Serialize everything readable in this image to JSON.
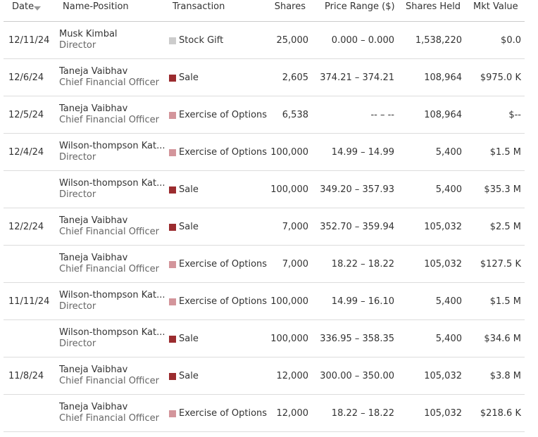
{
  "header": {
    "date": "Date",
    "name_position": "Name-Position",
    "transaction": "Transaction",
    "shares": "Shares",
    "price_range": "Price Range ($)",
    "shares_held": "Shares Held",
    "mkt_value": "Mkt Value"
  },
  "table": {
    "rows": [
      {
        "date": "12/11/24",
        "name": "Musk Kimbal",
        "position": "Director",
        "transaction": "Stock Gift",
        "swatch": "#cccccc",
        "shares": "25,000",
        "price_range": "0.000 – 0.000",
        "shares_held": "1,538,220",
        "mkt_value": "$0.0"
      },
      {
        "date": "12/6/24",
        "name": "Taneja Vaibhav",
        "position": "Chief Financial Officer",
        "transaction": "Sale",
        "swatch": "#9b2c2f",
        "shares": "2,605",
        "price_range": "374.21 – 374.21",
        "shares_held": "108,964",
        "mkt_value": "$975.0 K"
      },
      {
        "date": "12/5/24",
        "name": "Taneja Vaibhav",
        "position": "Chief Financial Officer",
        "transaction": "Exercise of Options",
        "swatch": "#d3959b",
        "shares": "6,538",
        "price_range": "-- – --",
        "shares_held": "108,964",
        "mkt_value": "$--"
      },
      {
        "date": "12/4/24",
        "name": "Wilson-thompson Kat...",
        "position": "Director",
        "transaction": "Exercise of Options",
        "swatch": "#d3959b",
        "shares": "100,000",
        "price_range": "14.99 – 14.99",
        "shares_held": "5,400",
        "mkt_value": "$1.5 M"
      },
      {
        "date": null,
        "name": "Wilson-thompson Kat...",
        "position": "Director",
        "transaction": "Sale",
        "swatch": "#9b2c2f",
        "shares": "100,000",
        "price_range": "349.20 – 357.93",
        "shares_held": "5,400",
        "mkt_value": "$35.3 M"
      },
      {
        "date": "12/2/24",
        "name": "Taneja Vaibhav",
        "position": "Chief Financial Officer",
        "transaction": "Sale",
        "swatch": "#9b2c2f",
        "shares": "7,000",
        "price_range": "352.70 – 359.94",
        "shares_held": "105,032",
        "mkt_value": "$2.5 M"
      },
      {
        "date": null,
        "name": "Taneja Vaibhav",
        "position": "Chief Financial Officer",
        "transaction": "Exercise of Options",
        "swatch": "#d3959b",
        "shares": "7,000",
        "price_range": "18.22 – 18.22",
        "shares_held": "105,032",
        "mkt_value": "$127.5 K"
      },
      {
        "date": "11/11/24",
        "name": "Wilson-thompson Kat...",
        "position": "Director",
        "transaction": "Exercise of Options",
        "swatch": "#d3959b",
        "shares": "100,000",
        "price_range": "14.99 – 16.10",
        "shares_held": "5,400",
        "mkt_value": "$1.5 M"
      },
      {
        "date": null,
        "name": "Wilson-thompson Kat...",
        "position": "Director",
        "transaction": "Sale",
        "swatch": "#9b2c2f",
        "shares": "100,000",
        "price_range": "336.95 – 358.35",
        "shares_held": "5,400",
        "mkt_value": "$34.6 M"
      },
      {
        "date": "11/8/24",
        "name": "Taneja Vaibhav",
        "position": "Chief Financial Officer",
        "transaction": "Sale",
        "swatch": "#9b2c2f",
        "shares": "12,000",
        "price_range": "300.00 – 350.00",
        "shares_held": "105,032",
        "mkt_value": "$3.8 M"
      },
      {
        "date": null,
        "name": "Taneja Vaibhav",
        "position": "Chief Financial Officer",
        "transaction": "Exercise of Options",
        "swatch": "#d3959b",
        "shares": "12,000",
        "price_range": "18.22 – 18.22",
        "shares_held": "105,032",
        "mkt_value": "$218.6 K"
      }
    ]
  }
}
